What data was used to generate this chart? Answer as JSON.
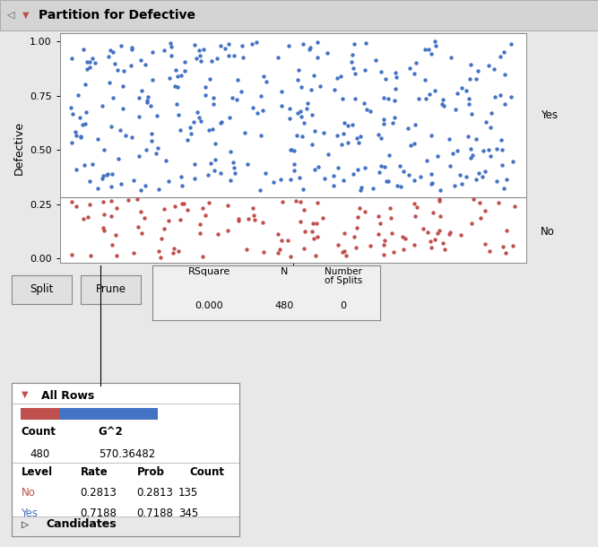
{
  "title": "Partition for Defective",
  "ylabel": "Defective",
  "xlabel": "All Rows",
  "ylim": [
    -0.02,
    1.04
  ],
  "hline_y": 0.2813,
  "blue_color": "#4472C4",
  "red_color": "#C0504D",
  "yes_label": "Yes",
  "no_label": "No",
  "yes_count": 345,
  "no_count": 135,
  "total_count": 480,
  "rsquare": "0.000",
  "n_val": "480",
  "num_splits": "0",
  "g2": "570.36482",
  "no_rate": "0.2813",
  "no_prob": "0.2813",
  "no_count_str": "135",
  "yes_rate": "0.7188",
  "yes_prob": "0.7188",
  "yes_count_str": "345",
  "bg_color": "#e8e8e8",
  "plot_bg": "#ffffff",
  "seed_blue": 42,
  "seed_red": 99
}
